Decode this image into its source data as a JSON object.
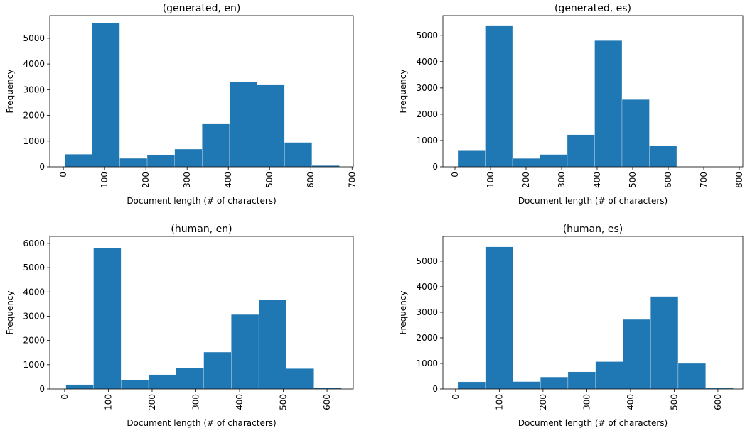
{
  "chart_data": [
    {
      "type": "histogram",
      "title": "(generated, en)",
      "xlabel": "Document length (# of characters)",
      "ylabel": "Frequency",
      "color": "#1f77b4",
      "bins": [
        3.4,
        70,
        136.6,
        203.2,
        269.8,
        336.4,
        403,
        469.6,
        536.2,
        602.8,
        669.4
      ],
      "values": [
        490,
        5600,
        330,
        470,
        690,
        1690,
        3300,
        3180,
        950,
        50
      ],
      "xlim": [
        -33,
        703
      ],
      "ylim": [
        0,
        5880
      ],
      "xticks": [
        0,
        100,
        200,
        300,
        400,
        500,
        600,
        700
      ],
      "yticks": [
        0,
        1000,
        2000,
        3000,
        4000,
        5000
      ]
    },
    {
      "type": "histogram",
      "title": "(generated, es)",
      "xlabel": "Document length (# of characters)",
      "ylabel": "Frequency",
      "color": "#1f77b4",
      "bins": [
        8,
        85,
        162,
        239,
        316,
        393,
        470,
        547,
        624,
        701,
        778
      ],
      "values": [
        610,
        5380,
        320,
        470,
        1220,
        4800,
        2560,
        800,
        10,
        5
      ],
      "xlim": [
        -34,
        810
      ],
      "ylim": [
        0,
        5750
      ],
      "xticks": [
        0,
        100,
        200,
        300,
        400,
        500,
        600,
        700,
        800
      ],
      "yticks": [
        0,
        1000,
        2000,
        3000,
        4000,
        5000
      ]
    },
    {
      "type": "histogram",
      "title": "(human, en)",
      "xlabel": "Document length (# of characters)",
      "ylabel": "Frequency",
      "color": "#1f77b4",
      "bins": [
        3,
        66,
        129,
        192,
        255,
        318,
        381,
        444,
        507,
        570,
        633
      ],
      "values": [
        180,
        5820,
        370,
        590,
        860,
        1520,
        3070,
        3680,
        840,
        40
      ],
      "xlim": [
        -34,
        660
      ],
      "ylim": [
        0,
        6290
      ],
      "xticks": [
        0,
        100,
        200,
        300,
        400,
        500,
        600
      ],
      "yticks": [
        0,
        1000,
        2000,
        3000,
        4000,
        5000,
        6000
      ]
    },
    {
      "type": "histogram",
      "title": "(human, es)",
      "xlabel": "Document length (# of characters)",
      "ylabel": "Frequency",
      "color": "#1f77b4",
      "bins": [
        5,
        68,
        131,
        194,
        257,
        320,
        383,
        446,
        509,
        572,
        635
      ],
      "values": [
        280,
        5560,
        290,
        470,
        670,
        1070,
        2720,
        3620,
        1000,
        30
      ],
      "xlim": [
        -29,
        657
      ],
      "ylim": [
        0,
        5970
      ],
      "xticks": [
        0,
        100,
        200,
        300,
        400,
        500,
        600
      ],
      "yticks": [
        0,
        1000,
        2000,
        3000,
        4000,
        5000
      ]
    }
  ]
}
